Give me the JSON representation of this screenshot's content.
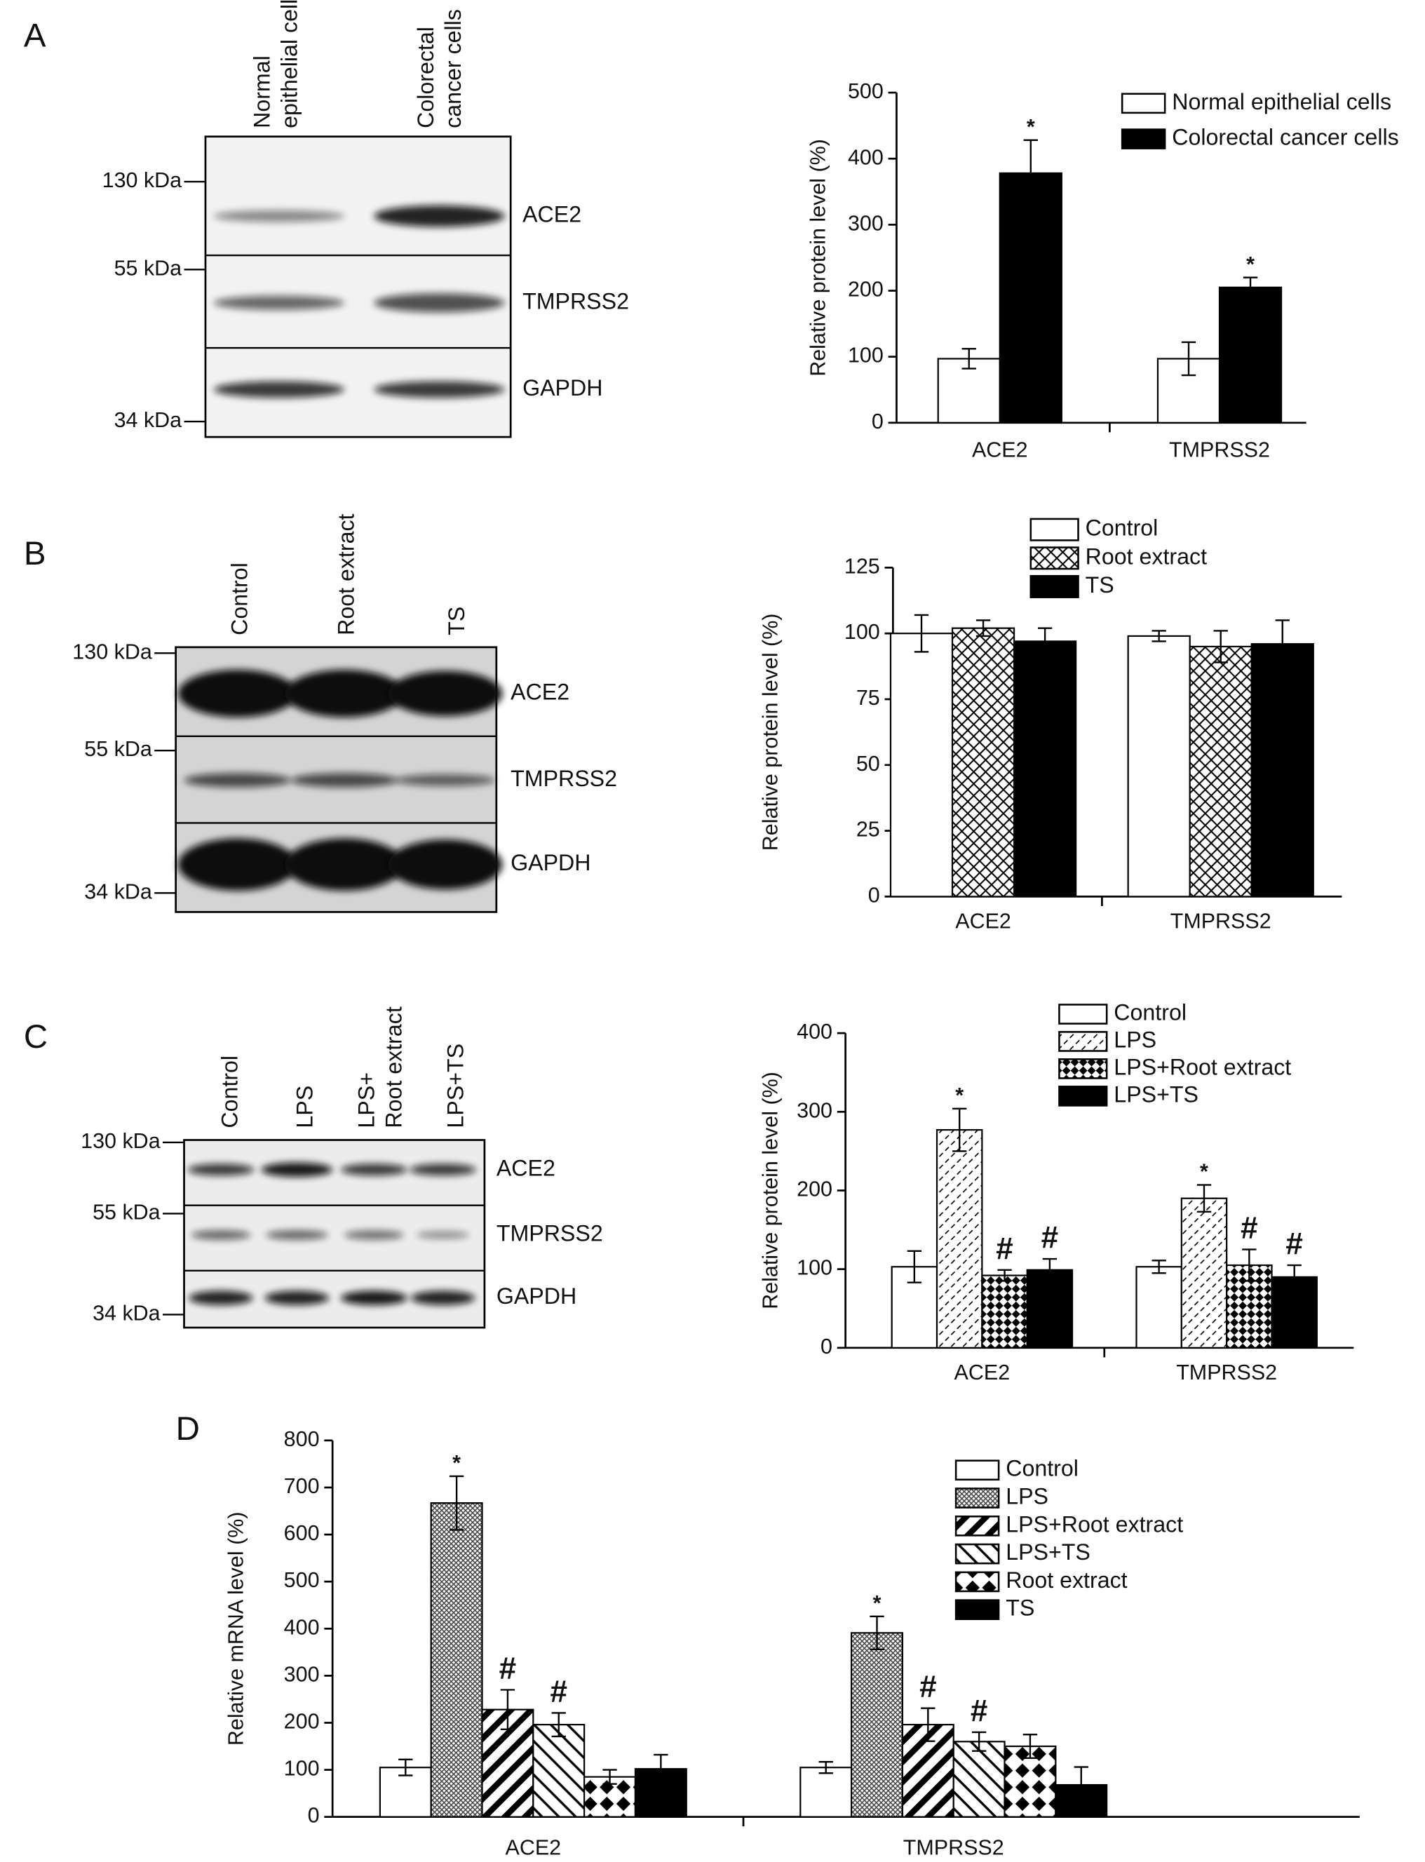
{
  "panels": [
    "A",
    "B",
    "C",
    "D"
  ],
  "blots": [
    {
      "kda": [
        "130 kDa",
        "55 kDa",
        "34 kDa"
      ],
      "lanes": [
        [
          "Normal",
          "epithelial cells"
        ],
        [
          "Colorectal",
          "cancer cells"
        ]
      ],
      "bands": [
        "ACE2",
        "TMPRSS2",
        "GAPDH"
      ]
    },
    {
      "kda": [
        "130 kDa",
        "55 kDa",
        "34 kDa"
      ],
      "lanes": [
        [
          "Control"
        ],
        [
          "Root extract"
        ],
        [
          "TS"
        ]
      ],
      "bands": [
        "ACE2",
        "TMPRSS2",
        "GAPDH"
      ]
    },
    {
      "kda": [
        "130 kDa",
        "55 kDa",
        "34 kDa"
      ],
      "lanes": [
        [
          "Control"
        ],
        [
          "LPS"
        ],
        [
          "LPS+",
          "Root extract"
        ],
        [
          "LPS+TS"
        ]
      ],
      "bands": [
        "ACE2",
        "TMPRSS2",
        "GAPDH"
      ]
    }
  ],
  "chart_data": [
    {
      "type": "bar",
      "ylabel": "Relative protein level (%)",
      "categories": [
        "ACE2",
        "TMPRSS2"
      ],
      "ylim": [
        0,
        500
      ],
      "yticks": [
        0,
        100,
        200,
        300,
        400,
        500
      ],
      "series": [
        {
          "name": "Normal epithelial cells",
          "color": "#ffffff",
          "values": [
            97,
            97
          ],
          "errors": [
            15,
            25
          ]
        },
        {
          "name": "Colorectal cancer cells",
          "color": "#000000",
          "values": [
            378,
            205
          ],
          "errors": [
            50,
            15
          ],
          "annotations": [
            "*",
            "*"
          ]
        }
      ]
    },
    {
      "type": "bar",
      "ylabel": "Relative protein level (%)",
      "categories": [
        "ACE2",
        "TMPRSS2"
      ],
      "ylim": [
        0,
        125
      ],
      "yticks": [
        0,
        25,
        50,
        75,
        100,
        125
      ],
      "series": [
        {
          "name": "Control",
          "color": "#ffffff",
          "values": [
            100,
            99
          ],
          "errors": [
            7,
            2
          ]
        },
        {
          "name": "Root extract",
          "color": "#000000",
          "pattern": "crosshatch",
          "values": [
            102,
            95
          ],
          "errors": [
            3,
            6
          ]
        },
        {
          "name": "TS",
          "color": "#000000",
          "values": [
            97,
            96
          ],
          "errors": [
            5,
            9
          ]
        }
      ]
    },
    {
      "type": "bar",
      "ylabel": "Relative protein level (%)",
      "categories": [
        "ACE2",
        "TMPRSS2"
      ],
      "ylim": [
        0,
        400
      ],
      "yticks": [
        0,
        100,
        200,
        300,
        400
      ],
      "series": [
        {
          "name": "Control",
          "color": "#ffffff",
          "values": [
            103,
            103
          ],
          "errors": [
            20,
            8
          ]
        },
        {
          "name": "LPS",
          "color": "#000000",
          "pattern": "dots",
          "values": [
            277,
            190
          ],
          "errors": [
            27,
            17
          ],
          "annotations": [
            "*",
            "*"
          ]
        },
        {
          "name": "LPS+Root extract",
          "color": "#000000",
          "pattern": "checker",
          "values": [
            92,
            105
          ],
          "errors": [
            7,
            20
          ],
          "annotations": [
            "#",
            "#"
          ]
        },
        {
          "name": "LPS+TS",
          "color": "#000000",
          "values": [
            99,
            90
          ],
          "errors": [
            14,
            15
          ],
          "annotations": [
            "#",
            "#"
          ]
        }
      ]
    },
    {
      "type": "bar",
      "ylabel": "Relative mRNA level (%)",
      "categories": [
        "ACE2",
        "TMPRSS2"
      ],
      "ylim": [
        0,
        800
      ],
      "yticks": [
        0,
        100,
        200,
        300,
        400,
        500,
        600,
        700,
        800
      ],
      "series": [
        {
          "name": "Control",
          "color": "#ffffff",
          "values": [
            105,
            105
          ],
          "errors": [
            17,
            12
          ]
        },
        {
          "name": "LPS",
          "color": "#000000",
          "pattern": "dense",
          "values": [
            667,
            391
          ],
          "errors": [
            57,
            35
          ],
          "annotations": [
            "*",
            "*"
          ]
        },
        {
          "name": "LPS+Root extract",
          "color": "#000000",
          "pattern": "back-stripe",
          "values": [
            228,
            196
          ],
          "errors": [
            42,
            35
          ],
          "annotations": [
            "#",
            "#"
          ]
        },
        {
          "name": "LPS+TS",
          "color": "#000000",
          "pattern": "fwd-stripe",
          "values": [
            196,
            160
          ],
          "errors": [
            25,
            20
          ],
          "annotations": [
            "#",
            "#"
          ]
        },
        {
          "name": "Root extract",
          "color": "#000000",
          "pattern": "diamond",
          "values": [
            85,
            150
          ],
          "errors": [
            15,
            25
          ]
        },
        {
          "name": "TS",
          "color": "#000000",
          "values": [
            102,
            68
          ],
          "errors": [
            30,
            38
          ]
        }
      ]
    }
  ]
}
